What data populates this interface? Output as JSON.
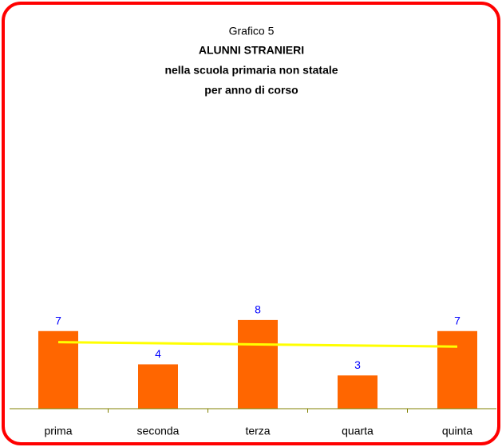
{
  "chart_data": {
    "type": "bar",
    "title": "Grafico 5",
    "subtitle": [
      "ALUNNI STRANIERI",
      "nella scuola primaria non statale",
      "per anno di corso"
    ],
    "categories": [
      "prima",
      "seconda",
      "terza",
      "quarta",
      "quinta"
    ],
    "series": [
      {
        "type": "bar",
        "color": "#ff6600",
        "label_color": "#0000ff",
        "values": [
          7,
          4,
          8,
          3,
          7
        ]
      },
      {
        "type": "line",
        "color": "#ffff00",
        "values": [
          6.0,
          5.9,
          5.8,
          5.7,
          5.6
        ]
      }
    ],
    "ylim": [
      0,
      27
    ]
  }
}
